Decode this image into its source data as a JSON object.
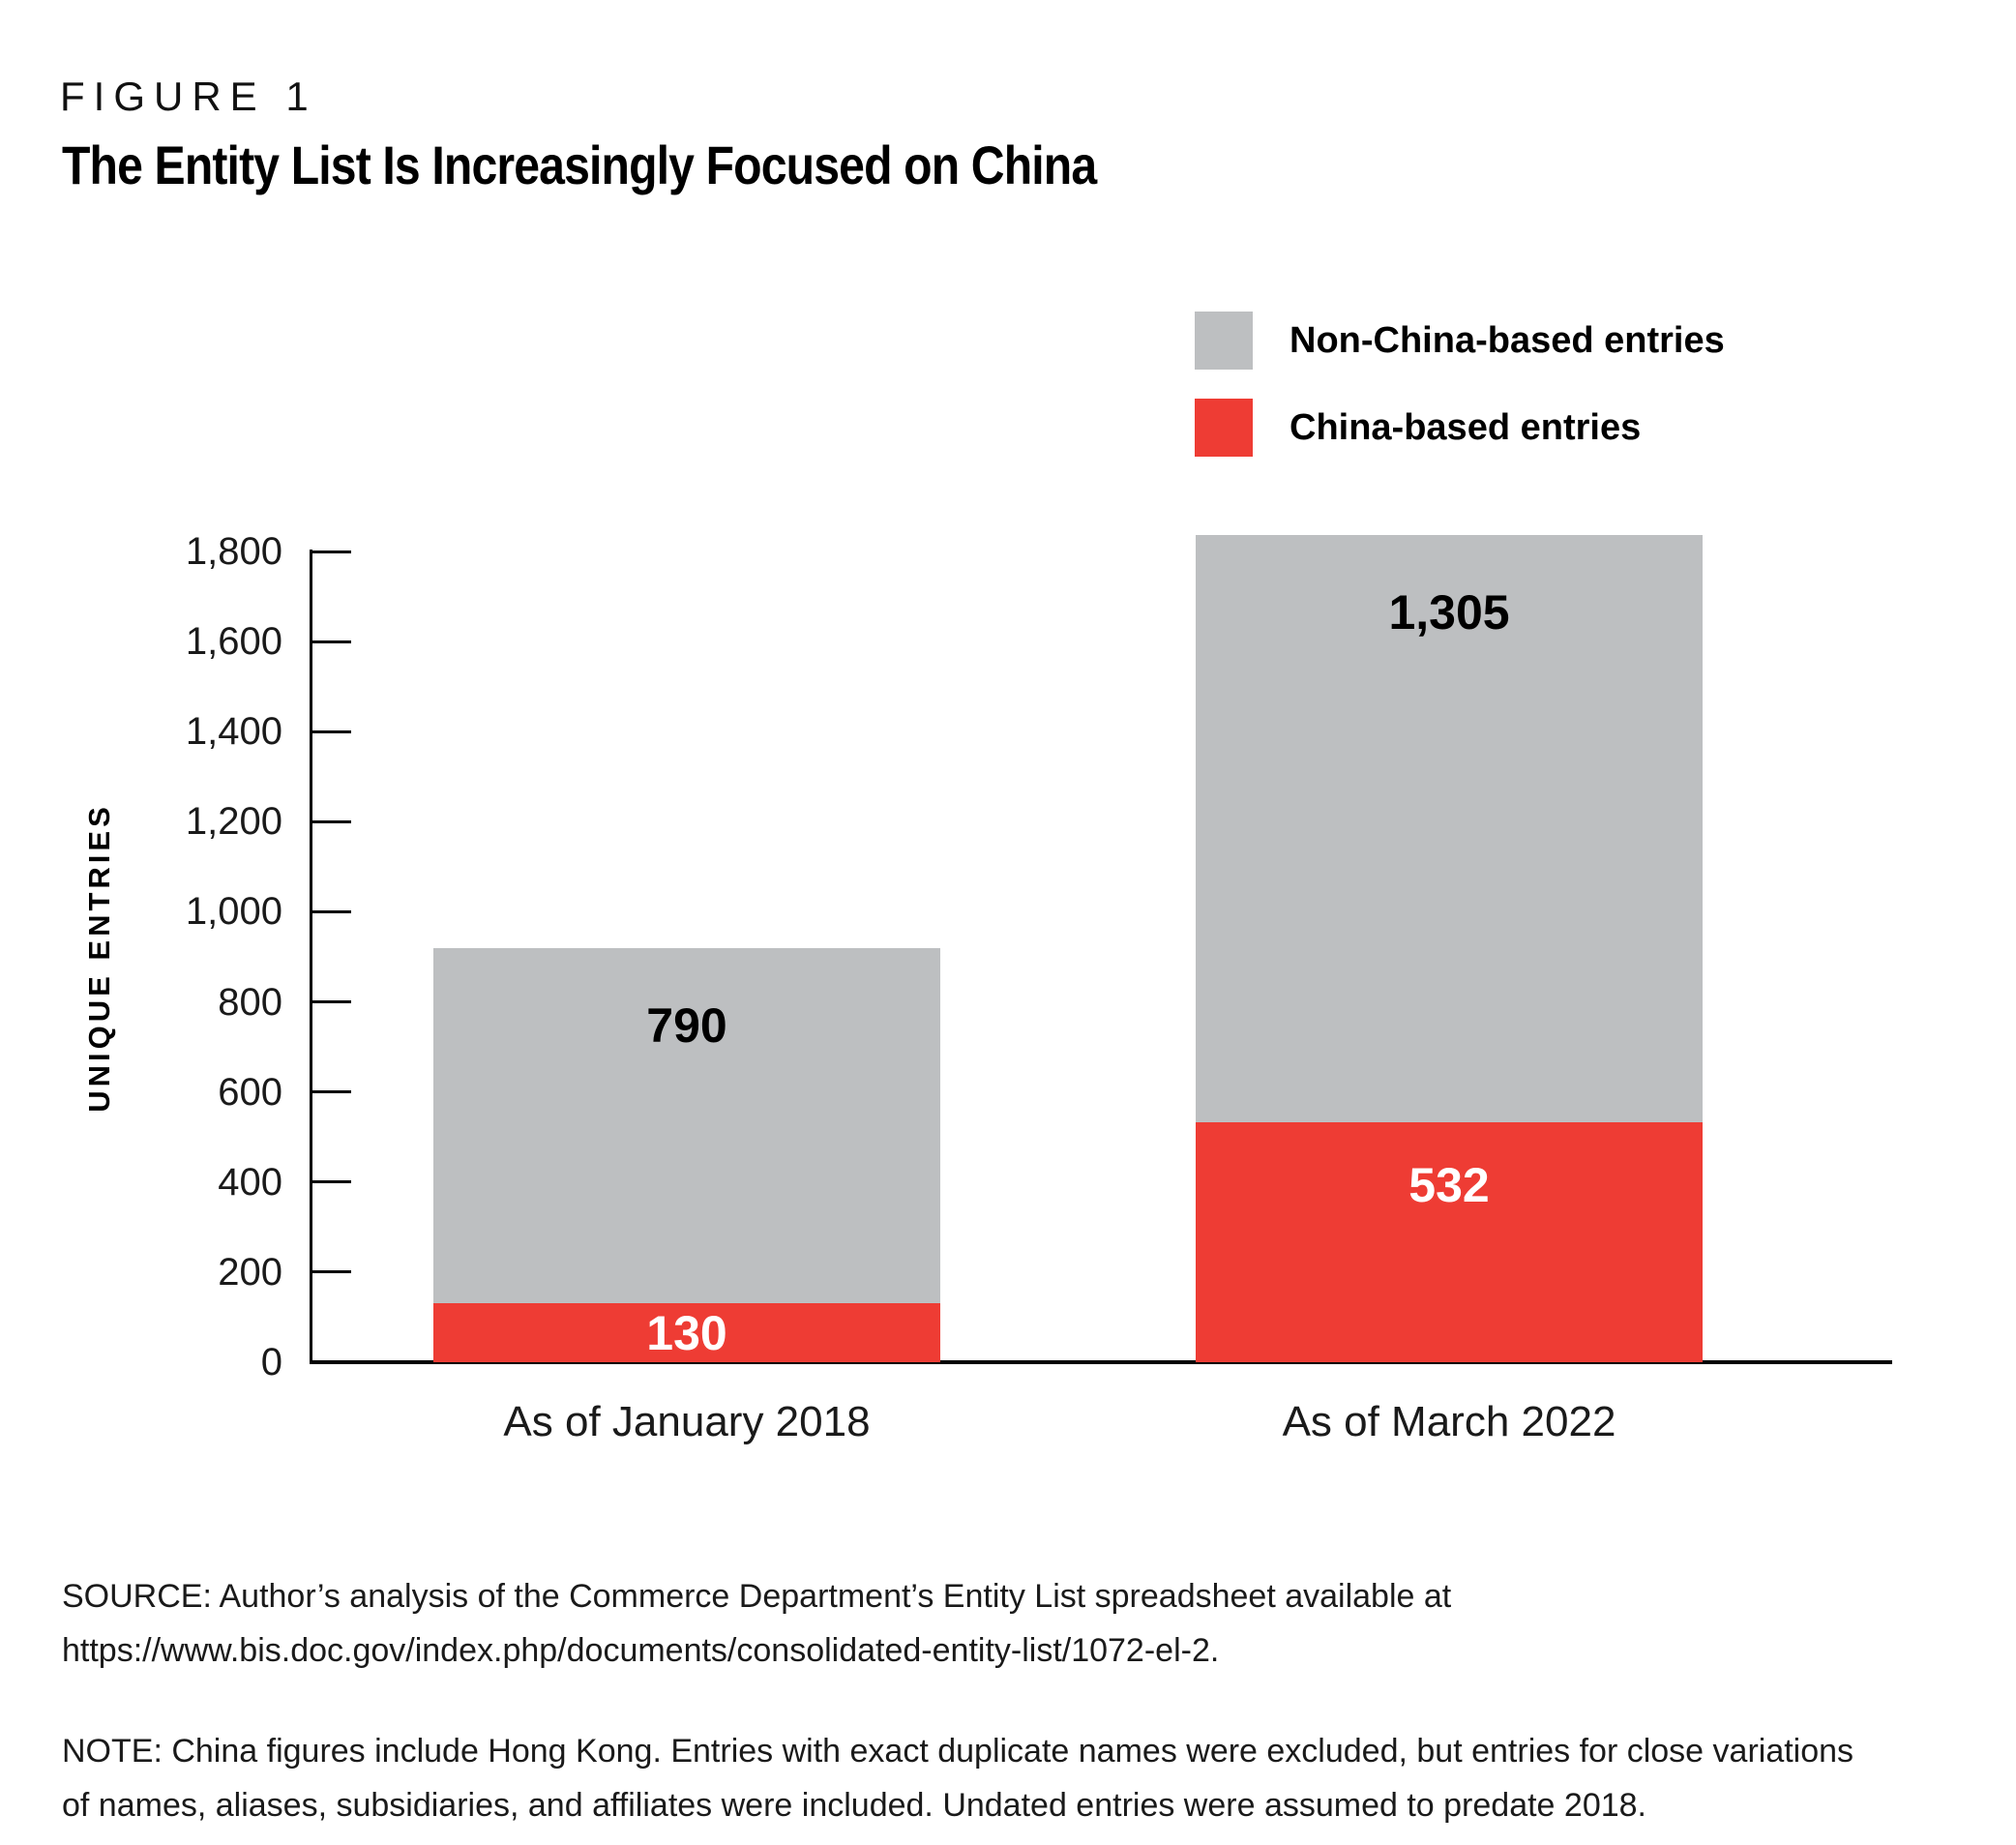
{
  "figure_label": "FIGURE 1",
  "title": "The Entity List Is Increasingly Focused on China",
  "legend": {
    "items": [
      {
        "label": "Non-China-based entries",
        "color": "#bdbfc1"
      },
      {
        "label": "China-based entries",
        "color": "#ee3c34"
      }
    ]
  },
  "chart_data": {
    "type": "bar",
    "stacked": true,
    "title": "The Entity List Is Increasingly Focused on China",
    "categories": [
      "As of January 2018",
      "As of March 2022"
    ],
    "series": [
      {
        "name": "China-based entries",
        "color": "#ee3c34",
        "values": [
          130,
          532
        ],
        "labels": [
          "130",
          "532"
        ],
        "label_color": "#ffffff"
      },
      {
        "name": "Non-China-based entries",
        "color": "#bdbfc1",
        "values": [
          790,
          1305
        ],
        "labels": [
          "790",
          "1,305"
        ],
        "label_color": "#000000"
      }
    ],
    "totals": [
      920,
      1837
    ],
    "xlabel": "",
    "ylabel": "UNIQUE ENTRIES",
    "ylim": [
      0,
      1800
    ],
    "y_tick_step": 200,
    "y_tick_labels": [
      "0",
      "200",
      "400",
      "600",
      "800",
      "1,000",
      "1,200",
      "1,400",
      "1,600",
      "1,800"
    ],
    "grid": false,
    "legend_position": "top-right"
  },
  "source": "SOURCE: Author’s analysis of the Commerce Department’s Entity List spreadsheet available at\nhttps://www.bis.doc.gov/index.php/documents/consolidated-entity-list/1072-el-2.",
  "note": "NOTE: China figures include Hong Kong. Entries with exact duplicate names were excluded, but entries for close variations\nof names, aliases, subsidiaries, and affiliates were included. Undated entries were assumed to predate 2018."
}
